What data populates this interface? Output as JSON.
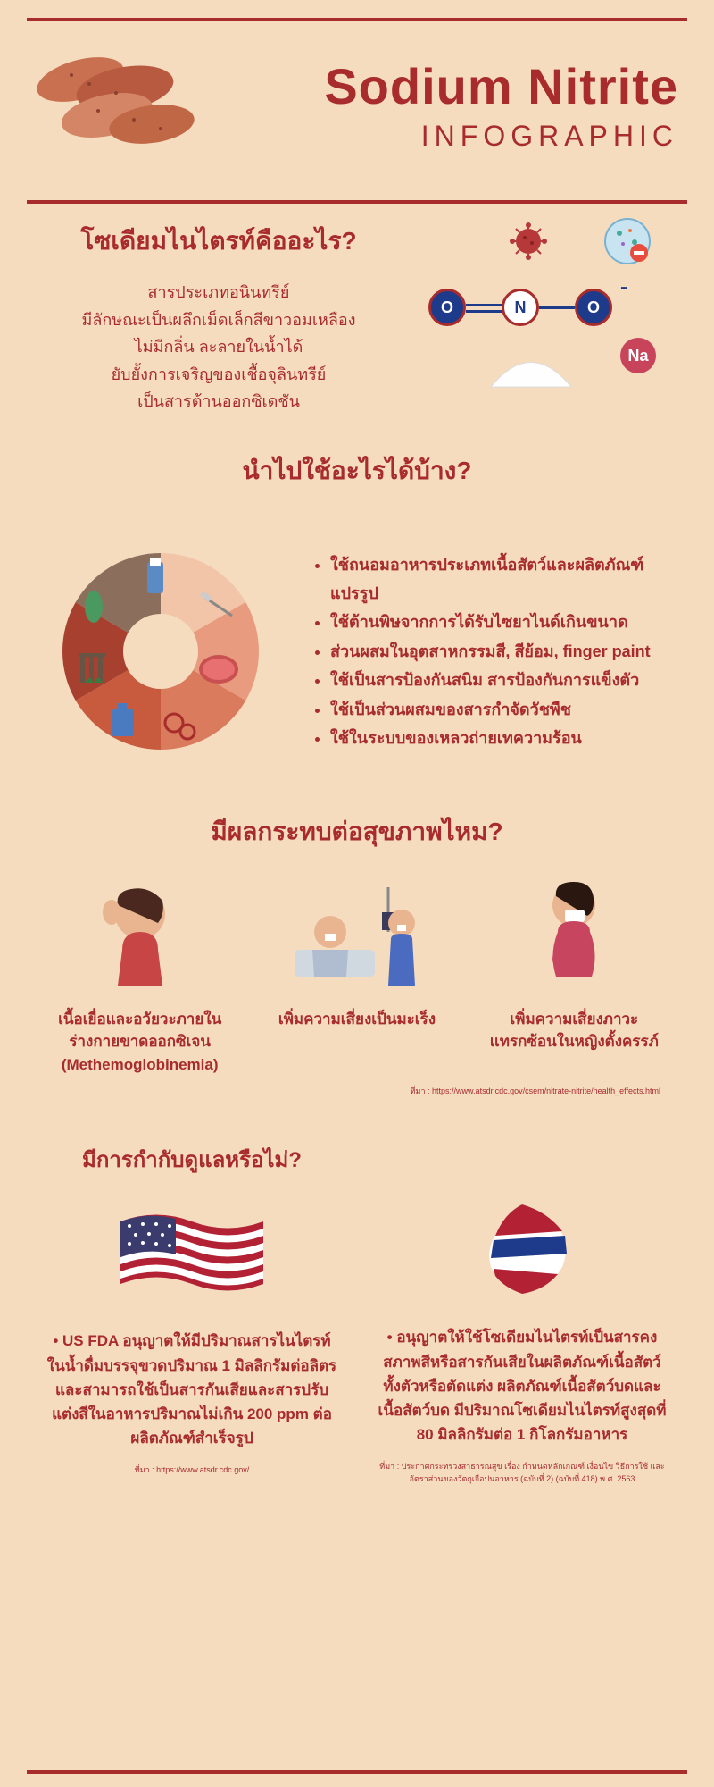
{
  "colors": {
    "bg": "#f5dcbf",
    "primary": "#a82c2c",
    "atom_o": "#1e3a8a",
    "atom_na": "#c8445a",
    "pie_segments": [
      "#8b6f5c",
      "#f2c4a8",
      "#e89b7e",
      "#d97b5c",
      "#c85a3e",
      "#a84030",
      "#6b3020"
    ]
  },
  "title": {
    "main": "Sodium Nitrite",
    "sub": "INFOGRAPHIC"
  },
  "what_is": {
    "heading": "โซเดียมไนไตรท์คืออะไร?",
    "body": "สารประเภทอนินทรีย์\nมีลักษณะเป็นผลึกเม็ดเล็กสีขาวอมเหลือง\nไม่มีกลิ่น ละลายในน้ำได้\nยับยั้งการเจริญของเชื้อจุลินทรีย์\nเป็นสารต้านออกซิเดชัน",
    "atoms": {
      "o": "O",
      "n": "N",
      "na": "Na"
    }
  },
  "uses": {
    "heading": "นำไปใช้อะไรได้บ้าง?",
    "items": [
      "ใช้ถนอมอาหารประเภทเนื้อสัตว์และผลิตภัณฑ์แปรรูป",
      "ใช้ต้านพิษจากการได้รับไซยาไนด์เกินขนาด",
      "ส่วนผสมในอุตสาหกรรมสี, สีย้อม, finger paint",
      "ใช้เป็นสารป้องกันสนิม สารป้องกันการแข็งตัว",
      "ใช้เป็นส่วนผสมของสารกำจัดวัชพืช",
      "ใช้ในระบบของเหลวถ่ายเทความร้อน"
    ]
  },
  "health": {
    "heading": "มีผลกระทบต่อสุขภาพไหม?",
    "items": [
      "เนื้อเยื่อและอวัยวะภายในร่างกายขาดออกซิเจน (Methemoglobinemia)",
      "เพิ่มความเสี่ยงเป็นมะเร็ง",
      "เพิ่มความเสี่ยงภาวะแทรกซ้อนในหญิงตั้งครรภ์"
    ],
    "source": "ที่มา : https://www.atsdr.cdc.gov/csem/nitrate-nitrite/health_effects.html"
  },
  "regulation": {
    "heading": "มีการกำกับดูแลหรือไม่?",
    "us": {
      "text": "• US FDA อนุญาตให้มีปริมาณสารไนไตรท์ในน้ำดื่มบรรจุขวดปริมาณ 1 มิลลิกรัมต่อลิตร และสามารถใช้เป็นสารกันเสียและสารปรับแต่งสีในอาหารปริมาณไม่เกิน 200 ppm ต่อผลิตภัณฑ์สำเร็จรูป",
      "source": "ที่มา : https://www.atsdr.cdc.gov/"
    },
    "th": {
      "text": "• อนุญาตให้ใช้โซเดียมไนไตรท์เป็นสารคงสภาพสีหรือสารกันเสียในผลิตภัณฑ์เนื้อสัตว์ทั้งตัวหรือตัดแต่ง ผลิตภัณฑ์เนื้อสัตว์บดและเนื้อสัตว์บด มีปริมาณโซเดียมไนไตรท์สูงสุดที่ 80 มิลลิกรัมต่อ 1 กิโลกรัมอาหาร",
      "source": "ที่มา : ประกาศกระทรวงสาธารณสุข เรื่อง กำหนดหลักเกณฑ์ เงื่อนไข วิธีการใช้ และอัตราส่วนของวัตถุเจือปนอาหาร (ฉบับที่ 2) (ฉบับที่ 418) พ.ศ. 2563"
    }
  }
}
